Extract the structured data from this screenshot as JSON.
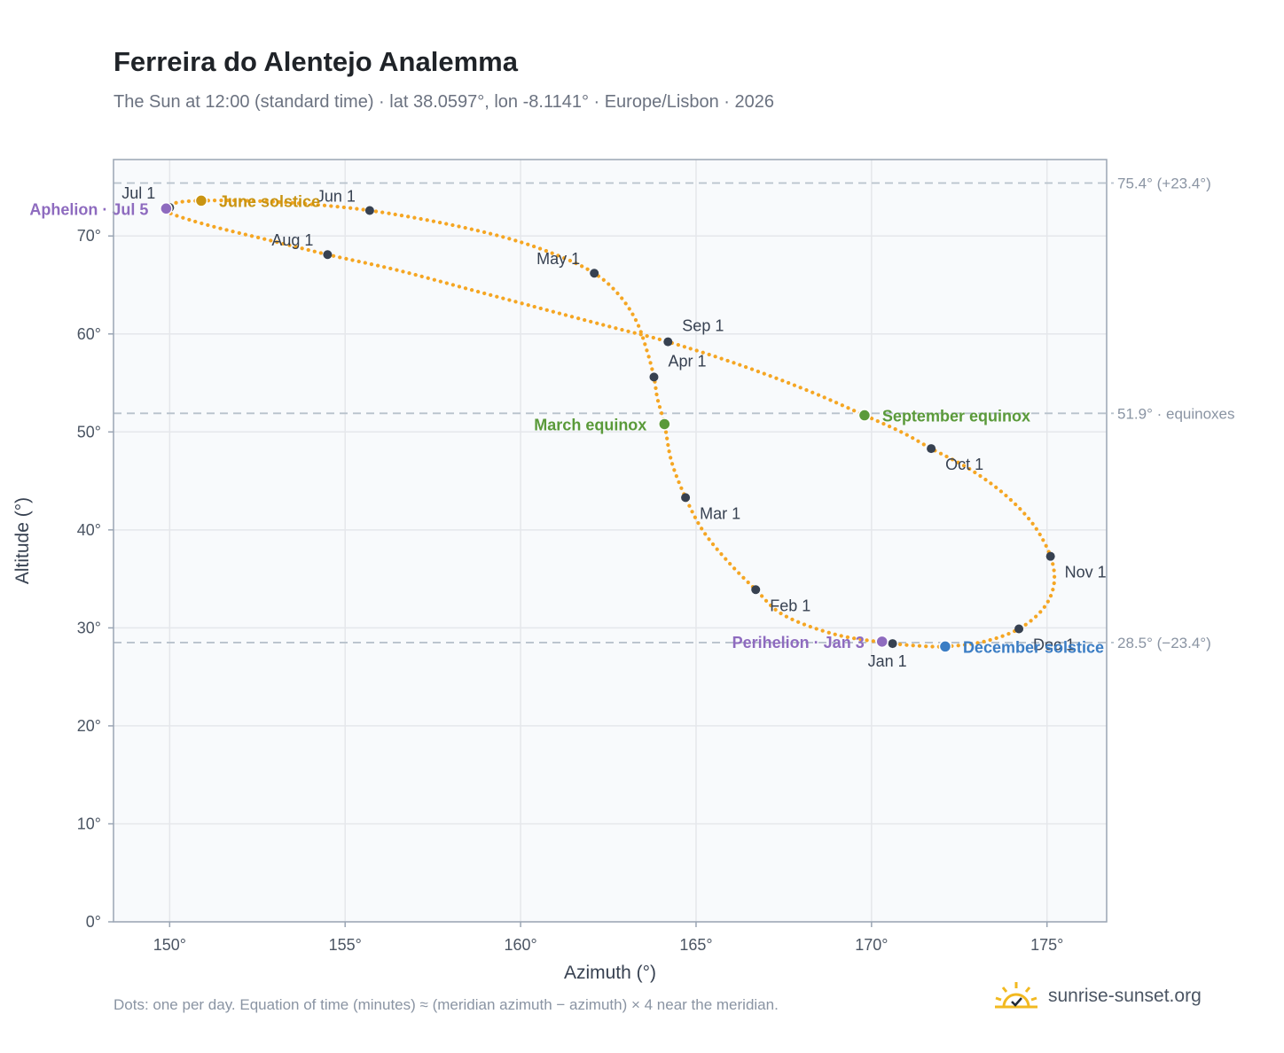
{
  "header": {
    "title": "Ferreira do Alentejo Analemma",
    "subtitle": "The Sun at 12:00 (standard time) · lat 38.0597°, lon -8.1141° · Europe/Lisbon · 2026"
  },
  "footer": {
    "note": "Dots: one per day. Equation of time (minutes) ≈ (meridian azimuth − azimuth) × 4 near the meridian.",
    "brand": "sunrise-sunset.org"
  },
  "colors": {
    "curve": "#f5a623",
    "month_dot": "#374151",
    "aphelion": "#8e6bbf",
    "solstice_june": "#c99412",
    "solstice_december": "#3b7dc4",
    "equinox": "#5a9a3a",
    "grid": "#e5e7eb",
    "plot_bg": "#f8fafc",
    "reference_line": "#b8c2cc"
  },
  "chart_data": {
    "type": "scatter",
    "xlabel": "Azimuth (°)",
    "ylabel": "Altitude (°)",
    "xlim": [
      148.4,
      176.7
    ],
    "ylim": [
      0,
      77.8
    ],
    "x_ticks": [
      150,
      155,
      160,
      165,
      170,
      175
    ],
    "x_tick_labels": [
      "150°",
      "155°",
      "160°",
      "165°",
      "170°",
      "175°"
    ],
    "y_ticks": [
      0,
      10,
      20,
      30,
      40,
      50,
      60,
      70
    ],
    "y_tick_labels": [
      "0°",
      "10°",
      "20°",
      "30°",
      "40°",
      "50°",
      "60°",
      "70°"
    ],
    "grid": true,
    "reference_lines": [
      {
        "y": 75.4,
        "label": "75.4° (+23.4°)"
      },
      {
        "y": 51.9,
        "label": "51.9° · equinoxes"
      },
      {
        "y": 28.5,
        "label": "28.5° (−23.4°)"
      }
    ],
    "month_points": [
      {
        "label": "Jan 1",
        "az": 170.6,
        "alt": 28.4,
        "pos": "below"
      },
      {
        "label": "Feb 1",
        "az": 166.7,
        "alt": 33.9,
        "pos": "right-below"
      },
      {
        "label": "Mar 1",
        "az": 164.7,
        "alt": 43.3,
        "pos": "right-below"
      },
      {
        "label": "Apr 1",
        "az": 163.8,
        "alt": 55.6,
        "pos": "right-above"
      },
      {
        "label": "May 1",
        "az": 162.1,
        "alt": 66.2,
        "pos": "left-above"
      },
      {
        "label": "Jun 1",
        "az": 155.7,
        "alt": 72.6,
        "pos": "left-above"
      },
      {
        "label": "Jul 1",
        "az": 150.0,
        "alt": 72.9,
        "pos": "left-above"
      },
      {
        "label": "Aug 1",
        "az": 154.5,
        "alt": 68.1,
        "pos": "left-above"
      },
      {
        "label": "Sep 1",
        "az": 164.2,
        "alt": 59.2,
        "pos": "right-above"
      },
      {
        "label": "Oct 1",
        "az": 171.7,
        "alt": 48.3,
        "pos": "right-below"
      },
      {
        "label": "Nov 1",
        "az": 175.1,
        "alt": 37.3,
        "pos": "right-below"
      },
      {
        "label": "Dec 1",
        "az": 174.2,
        "alt": 29.9,
        "pos": "right-below"
      }
    ],
    "special_points": [
      {
        "label": "Aphelion · Jul 5",
        "az": 149.9,
        "alt": 72.8,
        "color_key": "aphelion",
        "pos": "left"
      },
      {
        "label": "June solstice",
        "az": 150.9,
        "alt": 73.6,
        "color_key": "solstice_june",
        "pos": "right"
      },
      {
        "label": "March equinox",
        "az": 164.1,
        "alt": 50.8,
        "color_key": "equinox",
        "pos": "left"
      },
      {
        "label": "September equinox",
        "az": 169.8,
        "alt": 51.7,
        "color_key": "equinox",
        "pos": "right"
      },
      {
        "label": "Perihelion · Jan 3",
        "az": 170.3,
        "alt": 28.6,
        "color_key": "aphelion",
        "pos": "left"
      },
      {
        "label": "December solstice",
        "az": 172.1,
        "alt": 28.1,
        "color_key": "solstice_december",
        "pos": "right"
      }
    ],
    "curve_path": [
      {
        "az": 170.6,
        "alt": 28.4
      },
      {
        "az": 169.0,
        "alt": 29.3
      },
      {
        "az": 167.5,
        "alt": 31.3
      },
      {
        "az": 166.7,
        "alt": 33.9
      },
      {
        "az": 165.9,
        "alt": 36.8
      },
      {
        "az": 165.2,
        "alt": 39.9
      },
      {
        "az": 164.7,
        "alt": 43.3
      },
      {
        "az": 164.3,
        "alt": 47.0
      },
      {
        "az": 164.1,
        "alt": 50.8
      },
      {
        "az": 163.9,
        "alt": 53.4
      },
      {
        "az": 163.8,
        "alt": 55.6
      },
      {
        "az": 163.6,
        "alt": 58.3
      },
      {
        "az": 163.3,
        "alt": 61.3
      },
      {
        "az": 162.8,
        "alt": 64.0
      },
      {
        "az": 162.1,
        "alt": 66.2
      },
      {
        "az": 161.0,
        "alt": 68.1
      },
      {
        "az": 159.6,
        "alt": 69.8
      },
      {
        "az": 157.8,
        "alt": 71.3
      },
      {
        "az": 155.7,
        "alt": 72.6
      },
      {
        "az": 153.8,
        "alt": 73.3
      },
      {
        "az": 152.2,
        "alt": 73.6
      },
      {
        "az": 150.9,
        "alt": 73.6
      },
      {
        "az": 150.2,
        "alt": 73.4
      },
      {
        "az": 149.9,
        "alt": 72.8
      },
      {
        "az": 150.1,
        "alt": 72.2
      },
      {
        "az": 151.2,
        "alt": 71.0
      },
      {
        "az": 152.8,
        "alt": 69.6
      },
      {
        "az": 154.5,
        "alt": 68.1
      },
      {
        "az": 156.5,
        "alt": 66.5
      },
      {
        "az": 158.7,
        "alt": 64.4
      },
      {
        "az": 161.0,
        "alt": 62.2
      },
      {
        "az": 162.7,
        "alt": 60.6
      },
      {
        "az": 164.2,
        "alt": 59.2
      },
      {
        "az": 166.2,
        "alt": 56.9
      },
      {
        "az": 168.2,
        "alt": 54.2
      },
      {
        "az": 169.8,
        "alt": 51.7
      },
      {
        "az": 170.9,
        "alt": 49.9
      },
      {
        "az": 171.7,
        "alt": 48.3
      },
      {
        "az": 172.8,
        "alt": 46.2
      },
      {
        "az": 173.8,
        "alt": 43.6
      },
      {
        "az": 174.6,
        "alt": 40.6
      },
      {
        "az": 175.1,
        "alt": 37.3
      },
      {
        "az": 175.2,
        "alt": 34.5
      },
      {
        "az": 174.9,
        "alt": 32.0
      },
      {
        "az": 174.2,
        "alt": 29.9
      },
      {
        "az": 173.2,
        "alt": 28.6
      },
      {
        "az": 172.1,
        "alt": 28.1
      },
      {
        "az": 171.2,
        "alt": 28.2
      },
      {
        "az": 170.6,
        "alt": 28.4
      }
    ]
  }
}
